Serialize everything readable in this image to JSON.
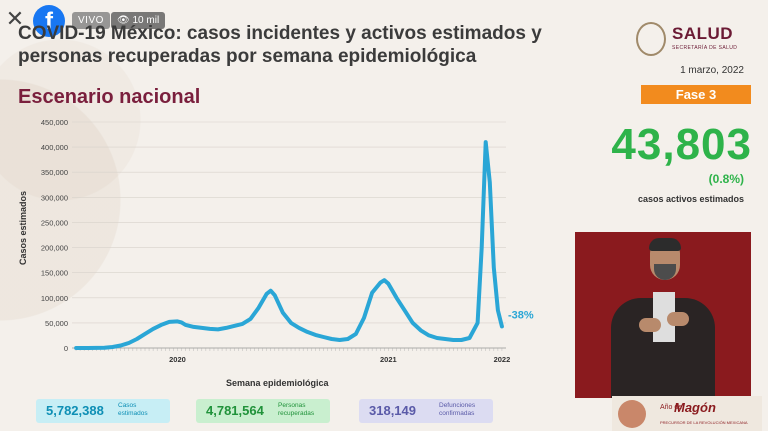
{
  "overlay": {
    "live_label": "VIVO",
    "viewers": "10 mil",
    "close_icon": "close-icon",
    "facebook_icon": "facebook-icon"
  },
  "header": {
    "title": "COVID-19 México: casos incidentes y activos estimados y personas recuperadas por semana epidemiológica",
    "subtitle": "Escenario nacional"
  },
  "brand": {
    "name": "SALUD",
    "sub": "SECRETARÍA DE SALUD"
  },
  "panel": {
    "date": "1 marzo, 2022",
    "phase": "Fase 3",
    "active_cases": "43,803",
    "active_pct": "(0.8%)",
    "active_label": "casos activos estimados"
  },
  "legend": {
    "estimated_cases_value": "5,782,388",
    "estimated_cases_label": "Casos estimados",
    "recovered_value": "4,781,564",
    "recovered_label": "Personas recuperadas",
    "deaths_value": "318,149",
    "deaths_label": "Defunciones confirmadas"
  },
  "footer_logo": {
    "year": "2022",
    "year_prefix": "Año de",
    "name": "Magón",
    "sub": "PRECURSOR DE LA REVOLUCIÓN MEXICANA"
  },
  "chart_data": {
    "type": "line",
    "xlabel": "Semana epidemiológica",
    "ylabel": "Casos estimados",
    "ylim": [
      0,
      450000
    ],
    "yticks": [
      "0",
      "50,000",
      "100,000",
      "150,000",
      "200,000",
      "250,000",
      "300,000",
      "350,000",
      "400,000",
      "450,000"
    ],
    "year_labels": [
      {
        "label": "2020",
        "week": 26
      },
      {
        "label": "2021",
        "week": 78
      },
      {
        "label": "2022",
        "week": 106
      }
    ],
    "annotation": "-38%",
    "color": "#2aa6d6",
    "x": [
      1,
      4,
      8,
      10,
      12,
      14,
      16,
      18,
      20,
      22,
      24,
      26,
      27,
      28,
      30,
      32,
      34,
      36,
      38,
      40,
      42,
      44,
      46,
      48,
      49,
      50,
      52,
      54,
      56,
      58,
      60,
      62,
      64,
      66,
      68,
      70,
      72,
      74,
      76,
      77,
      78,
      80,
      82,
      84,
      86,
      88,
      90,
      92,
      94,
      96,
      98,
      100,
      101,
      102,
      103,
      104,
      105,
      106
    ],
    "y": [
      0,
      0,
      500,
      2000,
      5000,
      10000,
      18000,
      28000,
      38000,
      46000,
      52000,
      53000,
      51000,
      46000,
      42000,
      40000,
      38000,
      37000,
      40000,
      44000,
      48000,
      58000,
      80000,
      108000,
      114000,
      105000,
      70000,
      50000,
      40000,
      32000,
      26000,
      22000,
      18000,
      16000,
      18000,
      28000,
      60000,
      110000,
      130000,
      135000,
      128000,
      100000,
      75000,
      50000,
      35000,
      25000,
      20000,
      18000,
      16000,
      16000,
      20000,
      50000,
      200000,
      410000,
      330000,
      160000,
      75000,
      43000
    ]
  }
}
